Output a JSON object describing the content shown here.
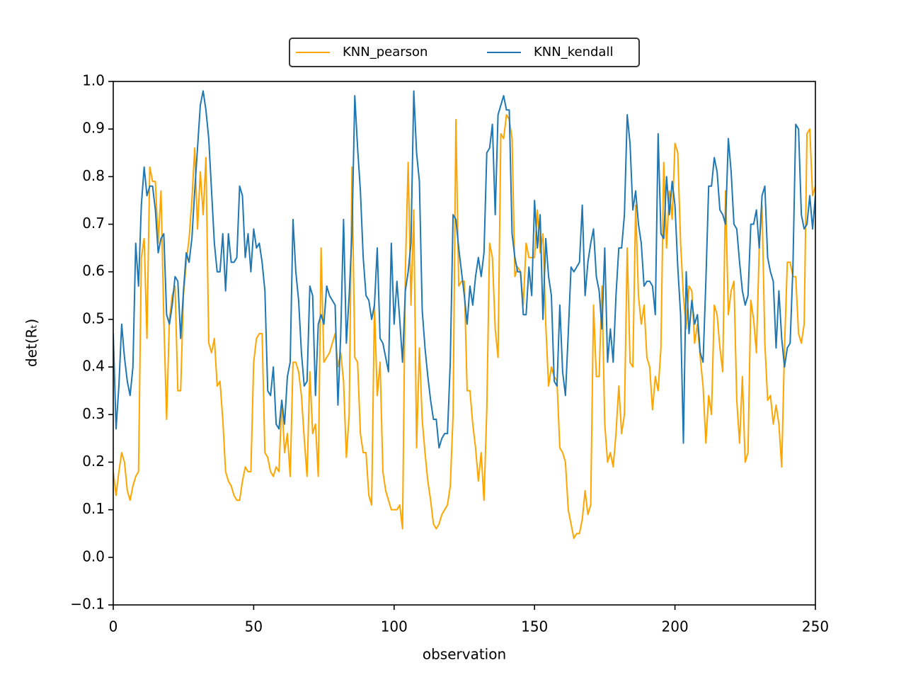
{
  "chart_data": {
    "type": "line",
    "xlabel": "observation",
    "ylabel": "det(Rₜ)",
    "x": [
      0,
      1,
      2,
      3,
      4,
      5,
      6,
      7,
      8,
      9,
      10,
      11,
      12,
      13,
      14,
      15,
      16,
      17,
      18,
      19,
      20,
      21,
      22,
      23,
      24,
      25,
      26,
      27,
      28,
      29,
      30,
      31,
      32,
      33,
      34,
      35,
      36,
      37,
      38,
      39,
      40,
      41,
      42,
      43,
      44,
      45,
      46,
      47,
      48,
      49,
      50,
      51,
      52,
      53,
      54,
      55,
      56,
      57,
      58,
      59,
      60,
      61,
      62,
      63,
      64,
      65,
      66,
      67,
      68,
      69,
      70,
      71,
      72,
      73,
      74,
      75,
      76,
      77,
      78,
      79,
      80,
      81,
      82,
      83,
      84,
      85,
      86,
      87,
      88,
      89,
      90,
      91,
      92,
      93,
      94,
      95,
      96,
      97,
      98,
      99,
      100,
      101,
      102,
      103,
      104,
      105,
      106,
      107,
      108,
      109,
      110,
      111,
      112,
      113,
      114,
      115,
      116,
      117,
      118,
      119,
      120,
      121,
      122,
      123,
      124,
      125,
      126,
      127,
      128,
      129,
      130,
      131,
      132,
      133,
      134,
      135,
      136,
      137,
      138,
      139,
      140,
      141,
      142,
      143,
      144,
      145,
      146,
      147,
      148,
      149,
      150,
      151,
      152,
      153,
      154,
      155,
      156,
      157,
      158,
      159,
      160,
      161,
      162,
      163,
      164,
      165,
      166,
      167,
      168,
      169,
      170,
      171,
      172,
      173,
      174,
      175,
      176,
      177,
      178,
      179,
      180,
      181,
      182,
      183,
      184,
      185,
      186,
      187,
      188,
      189,
      190,
      191,
      192,
      193,
      194,
      195,
      196,
      197,
      198,
      199,
      200,
      201,
      202,
      203,
      204,
      205,
      206,
      207,
      208,
      209,
      210,
      211,
      212,
      213,
      214,
      215,
      216,
      217,
      218,
      219,
      220,
      221,
      222,
      223,
      224,
      225,
      226,
      227,
      228,
      229,
      230,
      231,
      232,
      233,
      234,
      235,
      236,
      237,
      238,
      239,
      240,
      241,
      242,
      243,
      244,
      245,
      246,
      247,
      248,
      249,
      250
    ],
    "series": [
      {
        "name": "KNN_pearson",
        "color": "#ffa500",
        "values": [
          0.18,
          0.13,
          0.18,
          0.22,
          0.2,
          0.14,
          0.12,
          0.15,
          0.17,
          0.18,
          0.63,
          0.67,
          0.46,
          0.82,
          0.79,
          0.79,
          0.66,
          0.77,
          0.5,
          0.29,
          0.5,
          0.55,
          0.57,
          0.35,
          0.35,
          0.55,
          0.62,
          0.67,
          0.75,
          0.86,
          0.69,
          0.81,
          0.72,
          0.84,
          0.45,
          0.43,
          0.46,
          0.36,
          0.37,
          0.29,
          0.18,
          0.16,
          0.15,
          0.13,
          0.12,
          0.12,
          0.16,
          0.19,
          0.18,
          0.18,
          0.41,
          0.46,
          0.47,
          0.47,
          0.22,
          0.21,
          0.18,
          0.17,
          0.19,
          0.18,
          0.33,
          0.22,
          0.26,
          0.17,
          0.41,
          0.41,
          0.39,
          0.34,
          0.25,
          0.17,
          0.39,
          0.26,
          0.28,
          0.17,
          0.65,
          0.41,
          0.42,
          0.43,
          0.45,
          0.47,
          0.4,
          0.43,
          0.37,
          0.21,
          0.3,
          0.82,
          0.42,
          0.41,
          0.26,
          0.22,
          0.22,
          0.13,
          0.11,
          0.53,
          0.34,
          0.41,
          0.18,
          0.14,
          0.12,
          0.1,
          0.1,
          0.1,
          0.11,
          0.06,
          0.6,
          0.83,
          0.53,
          0.73,
          0.23,
          0.44,
          0.29,
          0.22,
          0.16,
          0.12,
          0.07,
          0.06,
          0.07,
          0.09,
          0.1,
          0.11,
          0.15,
          0.3,
          0.92,
          0.57,
          0.58,
          0.58,
          0.35,
          0.35,
          0.28,
          0.23,
          0.16,
          0.22,
          0.12,
          0.31,
          0.66,
          0.63,
          0.48,
          0.42,
          0.89,
          0.88,
          0.93,
          0.92,
          0.88,
          0.59,
          0.61,
          0.6,
          0.53,
          0.66,
          0.63,
          0.63,
          0.63,
          0.73,
          0.64,
          0.68,
          0.49,
          0.36,
          0.4,
          0.38,
          0.37,
          0.23,
          0.22,
          0.2,
          0.1,
          0.07,
          0.04,
          0.05,
          0.05,
          0.08,
          0.14,
          0.09,
          0.11,
          0.53,
          0.38,
          0.38,
          0.57,
          0.28,
          0.2,
          0.22,
          0.19,
          0.26,
          0.36,
          0.26,
          0.3,
          0.65,
          0.41,
          0.4,
          0.74,
          0.55,
          0.49,
          0.53,
          0.42,
          0.4,
          0.31,
          0.38,
          0.35,
          0.44,
          0.83,
          0.65,
          0.77,
          0.71,
          0.87,
          0.85,
          0.66,
          0.55,
          0.48,
          0.57,
          0.56,
          0.45,
          0.49,
          0.42,
          0.36,
          0.24,
          0.34,
          0.3,
          0.53,
          0.51,
          0.44,
          0.39,
          0.77,
          0.51,
          0.56,
          0.58,
          0.33,
          0.24,
          0.38,
          0.2,
          0.22,
          0.54,
          0.5,
          0.43,
          0.65,
          0.74,
          0.45,
          0.33,
          0.34,
          0.28,
          0.32,
          0.28,
          0.19,
          0.44,
          0.62,
          0.62,
          0.59,
          0.59,
          0.47,
          0.45,
          0.49,
          0.89,
          0.9,
          0.76,
          0.78
        ]
      },
      {
        "name": "KNN_kendall",
        "color": "#1f77b4",
        "values": [
          0.47,
          0.27,
          0.36,
          0.49,
          0.42,
          0.37,
          0.34,
          0.4,
          0.66,
          0.57,
          0.74,
          0.82,
          0.76,
          0.78,
          0.78,
          0.73,
          0.64,
          0.67,
          0.68,
          0.51,
          0.49,
          0.53,
          0.59,
          0.58,
          0.46,
          0.56,
          0.64,
          0.62,
          0.67,
          0.77,
          0.86,
          0.95,
          0.98,
          0.94,
          0.88,
          0.77,
          0.66,
          0.6,
          0.6,
          0.68,
          0.56,
          0.68,
          0.62,
          0.62,
          0.63,
          0.78,
          0.76,
          0.63,
          0.68,
          0.6,
          0.69,
          0.65,
          0.66,
          0.62,
          0.56,
          0.35,
          0.34,
          0.4,
          0.28,
          0.27,
          0.33,
          0.28,
          0.38,
          0.41,
          0.71,
          0.6,
          0.54,
          0.43,
          0.36,
          0.37,
          0.57,
          0.55,
          0.34,
          0.49,
          0.51,
          0.49,
          0.57,
          0.55,
          0.54,
          0.53,
          0.32,
          0.47,
          0.71,
          0.45,
          0.55,
          0.68,
          0.97,
          0.86,
          0.77,
          0.63,
          0.55,
          0.54,
          0.5,
          0.53,
          0.65,
          0.46,
          0.45,
          0.42,
          0.39,
          0.66,
          0.49,
          0.58,
          0.5,
          0.41,
          0.56,
          0.6,
          0.66,
          0.98,
          0.85,
          0.79,
          0.52,
          0.44,
          0.38,
          0.33,
          0.29,
          0.29,
          0.23,
          0.25,
          0.26,
          0.26,
          0.41,
          0.72,
          0.71,
          0.65,
          0.6,
          0.55,
          0.49,
          0.57,
          0.53,
          0.59,
          0.63,
          0.59,
          0.64,
          0.85,
          0.86,
          0.91,
          0.72,
          0.93,
          0.95,
          0.97,
          0.94,
          0.94,
          0.68,
          0.63,
          0.6,
          0.6,
          0.51,
          0.51,
          0.61,
          0.55,
          0.75,
          0.65,
          0.72,
          0.5,
          0.67,
          0.59,
          0.55,
          0.37,
          0.36,
          0.53,
          0.39,
          0.34,
          0.47,
          0.61,
          0.6,
          0.61,
          0.62,
          0.74,
          0.55,
          0.62,
          0.66,
          0.69,
          0.59,
          0.56,
          0.48,
          0.65,
          0.41,
          0.48,
          0.41,
          0.55,
          0.65,
          0.65,
          0.72,
          0.93,
          0.87,
          0.73,
          0.77,
          0.7,
          0.66,
          0.57,
          0.58,
          0.58,
          0.57,
          0.51,
          0.89,
          0.68,
          0.67,
          0.8,
          0.72,
          0.79,
          0.74,
          0.61,
          0.51,
          0.24,
          0.6,
          0.47,
          0.54,
          0.49,
          0.51,
          0.43,
          0.41,
          0.58,
          0.78,
          0.78,
          0.84,
          0.81,
          0.73,
          0.72,
          0.7,
          0.88,
          0.81,
          0.7,
          0.69,
          0.62,
          0.56,
          0.53,
          0.55,
          0.7,
          0.7,
          0.73,
          0.65,
          0.76,
          0.78,
          0.63,
          0.6,
          0.58,
          0.44,
          0.56,
          0.46,
          0.4,
          0.44,
          0.45,
          0.61,
          0.91,
          0.9,
          0.72,
          0.69,
          0.7,
          0.76,
          0.69,
          0.76
        ]
      }
    ],
    "xlim": [
      0,
      250
    ],
    "xticks": [
      0,
      50,
      100,
      150,
      200,
      250
    ],
    "ylim": [
      -0.1,
      1.0
    ],
    "yticks": [
      {
        "value": -0.1,
        "label": "−0.1"
      },
      {
        "value": 0,
        "label": "0.0"
      },
      0.1,
      0.2,
      0.3,
      0.4,
      0.5,
      0.6,
      0.7,
      0.8,
      0.9,
      {
        "value": 1.0,
        "label": "1.0"
      }
    ],
    "legend": "upper center outside"
  }
}
